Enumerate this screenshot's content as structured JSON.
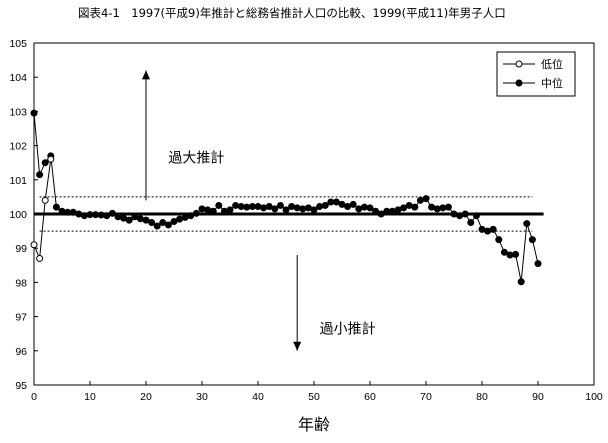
{
  "chart_data": {
    "type": "line",
    "title": "図表4-1　1997(平成9)年推計と総務省推計人口の比較、1999(平成11)年男子人口",
    "xlabel": "年齢",
    "ylabel": "",
    "xlim": [
      0,
      100
    ],
    "ylim": [
      95,
      105
    ],
    "xticks": [
      "0",
      "10",
      "20",
      "30",
      "40",
      "50",
      "60",
      "70",
      "80",
      "90",
      "100"
    ],
    "yticks": [
      "95",
      "96",
      "97",
      "98",
      "99",
      "100",
      "101",
      "102",
      "103",
      "104",
      "105"
    ],
    "grid": false,
    "legend_position": "top-right",
    "reference_lines": [
      {
        "y": 100,
        "from": 0,
        "to": 91,
        "style": "solid-thick"
      },
      {
        "y": 100.5,
        "from": 1,
        "to": 89,
        "style": "dotted"
      },
      {
        "y": 99.5,
        "from": 1,
        "to": 89,
        "style": "dotted"
      }
    ],
    "annotations": [
      {
        "text": "過大推計",
        "x": 24,
        "y": 101.5,
        "arrow": "up",
        "arrow_x": 20,
        "arrow_from": 100.4,
        "arrow_to": 104.2
      },
      {
        "text": "過小推計",
        "x": 51,
        "y": 96.5,
        "arrow": "down",
        "arrow_x": 47,
        "arrow_from": 98.8,
        "arrow_to": 96.0
      }
    ],
    "series": [
      {
        "name": "低位",
        "marker": "open-circle",
        "x": [
          0,
          1,
          2,
          3
        ],
        "values": [
          99.1,
          98.7,
          100.4,
          101.6
        ]
      },
      {
        "name": "中位",
        "marker": "filled-circle",
        "x": [
          0,
          1,
          2,
          3,
          4,
          5,
          6,
          7,
          8,
          9,
          10,
          11,
          12,
          13,
          14,
          15,
          16,
          17,
          18,
          19,
          20,
          21,
          22,
          23,
          24,
          25,
          26,
          27,
          28,
          29,
          30,
          31,
          32,
          33,
          34,
          35,
          36,
          37,
          38,
          39,
          40,
          41,
          42,
          43,
          44,
          45,
          46,
          47,
          48,
          49,
          50,
          51,
          52,
          53,
          54,
          55,
          56,
          57,
          58,
          59,
          60,
          61,
          62,
          63,
          64,
          65,
          66,
          67,
          68,
          69,
          70,
          71,
          72,
          73,
          74,
          75,
          76,
          77,
          78,
          79,
          80,
          81,
          82,
          83,
          84,
          85,
          86,
          87,
          88,
          89,
          90
        ],
        "values": [
          102.95,
          101.15,
          101.5,
          101.7,
          100.2,
          100.08,
          100.05,
          100.05,
          100.0,
          99.95,
          99.98,
          99.98,
          99.97,
          99.95,
          100.02,
          99.92,
          99.88,
          99.82,
          99.92,
          99.86,
          99.82,
          99.75,
          99.65,
          99.75,
          99.68,
          99.78,
          99.85,
          99.9,
          99.95,
          100.02,
          100.15,
          100.12,
          100.08,
          100.25,
          100.08,
          100.12,
          100.25,
          100.22,
          100.2,
          100.22,
          100.22,
          100.18,
          100.22,
          100.15,
          100.25,
          100.12,
          100.22,
          100.18,
          100.15,
          100.18,
          100.12,
          100.22,
          100.25,
          100.35,
          100.35,
          100.28,
          100.22,
          100.28,
          100.15,
          100.2,
          100.18,
          100.08,
          100.0,
          100.08,
          100.08,
          100.12,
          100.18,
          100.25,
          100.2,
          100.4,
          100.45,
          100.2,
          100.15,
          100.18,
          100.2,
          100.0,
          99.95,
          100.0,
          99.75,
          99.95,
          99.55,
          99.5,
          99.55,
          99.25,
          98.88,
          98.8,
          98.82,
          98.02,
          99.72,
          99.25,
          98.55
        ]
      }
    ]
  }
}
